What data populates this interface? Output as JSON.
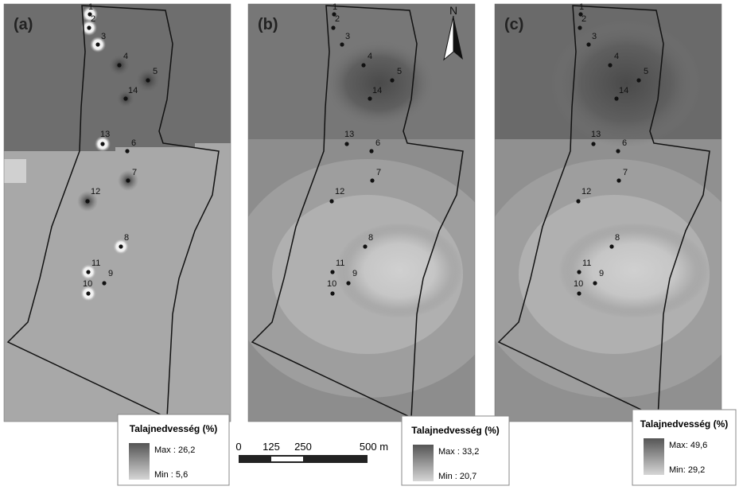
{
  "panels": [
    {
      "label": "(a)",
      "points": [
        "1",
        "2",
        "3",
        "4",
        "5",
        "6",
        "7",
        "8",
        "9",
        "10",
        "11",
        "12",
        "13",
        "14"
      ],
      "legend": {
        "title": "Talajnedvesség (%)",
        "max": "Max : 26,2",
        "min": "Min : 5,6"
      }
    },
    {
      "label": "(b)",
      "points": [
        "1",
        "2",
        "3",
        "4",
        "5",
        "6",
        "7",
        "8",
        "9",
        "10",
        "11",
        "12",
        "13",
        "14"
      ],
      "legend": {
        "title": "Talajnedvesség (%)",
        "max": "Max : 33,2",
        "min": "Min : 20,7"
      }
    },
    {
      "label": "(c)",
      "points": [
        "1",
        "2",
        "3",
        "4",
        "5",
        "6",
        "7",
        "8",
        "9",
        "10",
        "11",
        "12",
        "13",
        "14"
      ],
      "legend": {
        "title": "Talajnedvesség (%)",
        "max": "Max: 49,6",
        "min": "Min: 29,2"
      }
    }
  ],
  "scale_bar": {
    "ticks": [
      "0",
      "125",
      "250",
      "500 m"
    ]
  },
  "north": "N"
}
